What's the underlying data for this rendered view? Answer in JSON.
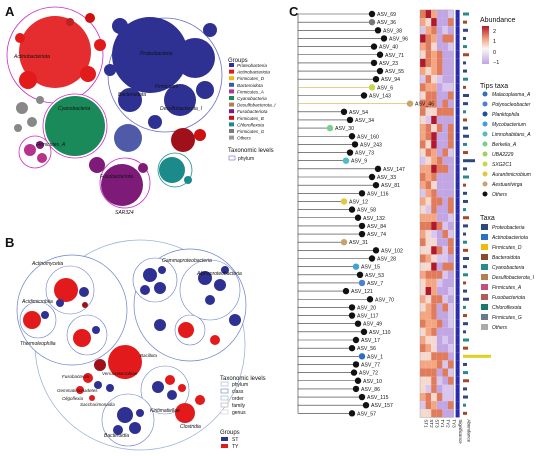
{
  "panels": {
    "a": "A",
    "b": "B",
    "c": "C"
  },
  "colors": {
    "Proteobacteria": "#2e3192",
    "Actinobacteriota": "#e31a1c",
    "Firmicutes_D": "#f2b90f",
    "Bacteroidota": "#3a5ba6",
    "Firmicutes_A": "#b5338a",
    "Cyanobacteria": "#1b8a5a",
    "Desulfobacterota_I": "#b08050",
    "Fusobacteriota": "#7e1b78",
    "Chloroflexota": "#1a8a8a",
    "Firmicutes_G": "#7a7a7a",
    "Others": "#999999",
    "ST": "#2e3192",
    "TY": "#e31a1c"
  },
  "panelA": {
    "legend_title": "Groups",
    "groups": [
      "Proteobacteria",
      "Actinobacteriota",
      "Firmicutes_D",
      "Bacteroidota",
      "Firmicutes_A",
      "Cyanobacteria",
      "Desulfobacterota_I",
      "Fusobacteriota",
      "Firmicutes_B",
      "Chloroflexota",
      "Firmicutes_G",
      "Others"
    ],
    "levels_title": "Taxonomic levels",
    "level": "phylum",
    "labels": [
      "Actinobacteriota",
      "Proteobacteria",
      "Cyanobacteria",
      "Bacteroidota",
      "Firmicutes",
      "Patescibacteria",
      "Firmicutes_A",
      "Desulfobacterota_I",
      "Fusobacteriota",
      "SAR324",
      "Chloroflexota"
    ]
  },
  "panelB": {
    "levels_title": "Taxonomic levels",
    "levels": [
      "phylum",
      "class",
      "order",
      "family",
      "genus"
    ],
    "groups_title": "Groups",
    "groups": [
      "ST",
      "TY"
    ],
    "labels": [
      "Gammaproteobacteria",
      "Alphaproteobacteria",
      "Actinomycetia",
      "Acidimicrobiia",
      "Thermoleophilia",
      "Fusobacteriia",
      "Bacillota",
      "Verrucomicrobiae",
      "Gemmatimonadetes",
      "Oligoflexia",
      "Saccharimonadia",
      "Bacteroidia",
      "Clostridia",
      "Kiritimatiellae",
      "Bacteroidia"
    ]
  },
  "panelC": {
    "abundance_title": "Abundance",
    "abundance_ticks": [
      "2",
      "1",
      "0",
      "−1"
    ],
    "tips_title": "Tips taxa",
    "tips": [
      {
        "name": "Malacoplasma_A",
        "color": "#2e6fbf"
      },
      {
        "name": "Polynucleobacter",
        "color": "#4b7fd1"
      },
      {
        "name": "Planktophila",
        "color": "#1f4e9c"
      },
      {
        "name": "Mycobacterium",
        "color": "#3fa1d8"
      },
      {
        "name": "Limnohabitans_A",
        "color": "#4fbdc5"
      },
      {
        "name": "Berkelia_A",
        "color": "#7ccc8a"
      },
      {
        "name": "UBA2229",
        "color": "#a5cf5b"
      },
      {
        "name": "SXG2C1",
        "color": "#c9d84a"
      },
      {
        "name": "Aurantimicrobium",
        "color": "#e1c83c"
      },
      {
        "name": "Aestuariivirga",
        "color": "#c7a36e"
      },
      {
        "name": "Others",
        "color": "#111111"
      }
    ],
    "taxa_title": "Taxa",
    "taxa": [
      {
        "name": "Proteobacteria",
        "color": "#2f4a7a"
      },
      {
        "name": "Actinobacteriota",
        "color": "#2e6fbf"
      },
      {
        "name": "Firmicutes_D",
        "color": "#f2b90f"
      },
      {
        "name": "Bacteroidota",
        "color": "#8a4a2a"
      },
      {
        "name": "Cyanobacteria",
        "color": "#2a8a8a"
      },
      {
        "name": "Desulfobacterota_I",
        "color": "#b08050"
      },
      {
        "name": "Firmicutes_A",
        "color": "#c2507a"
      },
      {
        "name": "Fusobacteriota",
        "color": "#b05a5a"
      },
      {
        "name": "Chloroflexota",
        "color": "#1a7a6a"
      },
      {
        "name": "Firmicutes_G",
        "color": "#6a7a8a"
      },
      {
        "name": "Others",
        "color": "#aaaaaa"
      }
    ],
    "asvs": [
      "ASV_69",
      "ASV_36",
      "ASV_38",
      "ASV_96",
      "ASV_40",
      "ASV_71",
      "ASV_23",
      "ASV_55",
      "ASV_94",
      "ASV_6",
      "ASV_143",
      "ASV_46",
      "ASV_54",
      "ASV_34",
      "ASV_30",
      "ASV_160",
      "ASV_243",
      "ASV_73",
      "ASV_9",
      "ASV_147",
      "ASV_33",
      "ASV_81",
      "ASV_116",
      "ASV_12",
      "ASV_58",
      "ASV_132",
      "ASV_84",
      "ASV_74",
      "ASV_31",
      "ASV_102",
      "ASV_28",
      "ASV_15",
      "ASV_53",
      "ASV_7",
      "ASV_121",
      "ASV_70",
      "ASV_20",
      "ASV_117",
      "ASV_49",
      "ASV_110",
      "ASV_17",
      "ASV_56",
      "ASV_1",
      "ASV_77",
      "ASV_72",
      "ASV_10",
      "ASV_86",
      "ASV_115",
      "ASV_157",
      "ASV_57"
    ],
    "x_labels": [
      "ST1",
      "ST2",
      "ST3",
      "TY1",
      "TY2",
      "TY3",
      "Significance",
      "Abundance"
    ]
  }
}
